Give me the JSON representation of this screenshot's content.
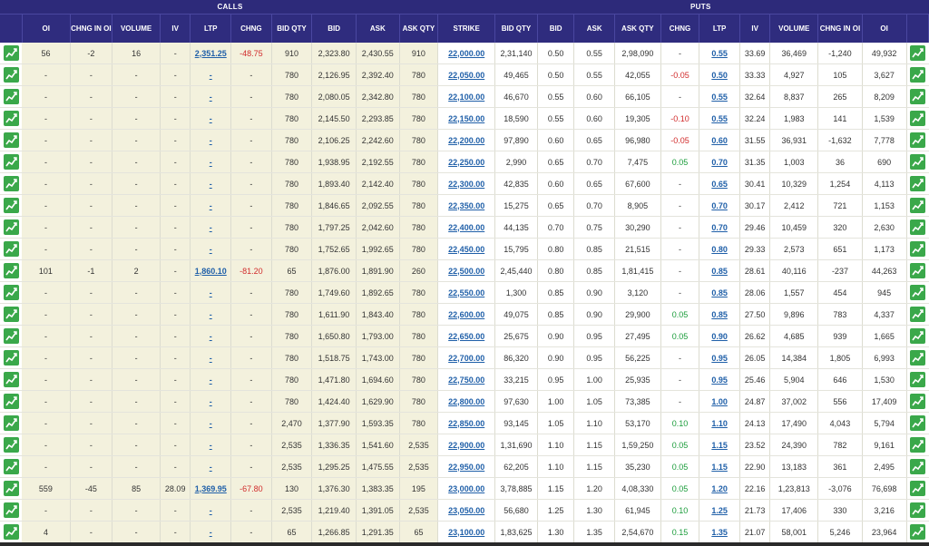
{
  "headers": {
    "calls": "CALLS",
    "puts": "PUTS",
    "columns_calls": [
      "OI",
      "CHNG IN OI",
      "VOLUME",
      "IV",
      "LTP",
      "CHNG",
      "BID QTY",
      "BID",
      "ASK",
      "ASK QTY"
    ],
    "strike": "STRIKE",
    "columns_puts": [
      "BID QTY",
      "BID",
      "ASK",
      "ASK QTY",
      "CHNG",
      "LTP",
      "IV",
      "VOLUME",
      "CHNG IN OI",
      "OI"
    ]
  },
  "rows": [
    {
      "c": [
        "56",
        "-2",
        "16",
        "-",
        "2,351.25",
        "-48.75",
        "910",
        "2,323.80",
        "2,430.55",
        "910"
      ],
      "strike": "22,000.00",
      "p": [
        "2,31,140",
        "0.50",
        "0.55",
        "2,98,090",
        "-",
        "0.55",
        "33.69",
        "36,469",
        "-1,240",
        "49,932"
      ]
    },
    {
      "c": [
        "-",
        "-",
        "-",
        "-",
        "-",
        "-",
        "780",
        "2,126.95",
        "2,392.40",
        "780"
      ],
      "strike": "22,050.00",
      "p": [
        "49,465",
        "0.50",
        "0.55",
        "42,055",
        "-0.05",
        "0.50",
        "33.33",
        "4,927",
        "105",
        "3,627"
      ]
    },
    {
      "c": [
        "-",
        "-",
        "-",
        "-",
        "-",
        "-",
        "780",
        "2,080.05",
        "2,342.80",
        "780"
      ],
      "strike": "22,100.00",
      "p": [
        "46,670",
        "0.55",
        "0.60",
        "66,105",
        "-",
        "0.55",
        "32.64",
        "8,837",
        "265",
        "8,209"
      ]
    },
    {
      "c": [
        "-",
        "-",
        "-",
        "-",
        "-",
        "-",
        "780",
        "2,145.50",
        "2,293.85",
        "780"
      ],
      "strike": "22,150.00",
      "p": [
        "18,590",
        "0.55",
        "0.60",
        "19,305",
        "-0.10",
        "0.55",
        "32.24",
        "1,983",
        "141",
        "1,539"
      ]
    },
    {
      "c": [
        "-",
        "-",
        "-",
        "-",
        "-",
        "-",
        "780",
        "2,106.25",
        "2,242.60",
        "780"
      ],
      "strike": "22,200.00",
      "p": [
        "97,890",
        "0.60",
        "0.65",
        "96,980",
        "-0.05",
        "0.60",
        "31.55",
        "36,931",
        "-1,632",
        "7,778"
      ]
    },
    {
      "c": [
        "-",
        "-",
        "-",
        "-",
        "-",
        "-",
        "780",
        "1,938.95",
        "2,192.55",
        "780"
      ],
      "strike": "22,250.00",
      "p": [
        "2,990",
        "0.65",
        "0.70",
        "7,475",
        "0.05",
        "0.70",
        "31.35",
        "1,003",
        "36",
        "690"
      ]
    },
    {
      "c": [
        "-",
        "-",
        "-",
        "-",
        "-",
        "-",
        "780",
        "1,893.40",
        "2,142.40",
        "780"
      ],
      "strike": "22,300.00",
      "p": [
        "42,835",
        "0.60",
        "0.65",
        "67,600",
        "-",
        "0.65",
        "30.41",
        "10,329",
        "1,254",
        "4,113"
      ]
    },
    {
      "c": [
        "-",
        "-",
        "-",
        "-",
        "-",
        "-",
        "780",
        "1,846.65",
        "2,092.55",
        "780"
      ],
      "strike": "22,350.00",
      "p": [
        "15,275",
        "0.65",
        "0.70",
        "8,905",
        "-",
        "0.70",
        "30.17",
        "2,412",
        "721",
        "1,153"
      ]
    },
    {
      "c": [
        "-",
        "-",
        "-",
        "-",
        "-",
        "-",
        "780",
        "1,797.25",
        "2,042.60",
        "780"
      ],
      "strike": "22,400.00",
      "p": [
        "44,135",
        "0.70",
        "0.75",
        "30,290",
        "-",
        "0.70",
        "29.46",
        "10,459",
        "320",
        "2,630"
      ]
    },
    {
      "c": [
        "-",
        "-",
        "-",
        "-",
        "-",
        "-",
        "780",
        "1,752.65",
        "1,992.65",
        "780"
      ],
      "strike": "22,450.00",
      "p": [
        "15,795",
        "0.80",
        "0.85",
        "21,515",
        "-",
        "0.80",
        "29.33",
        "2,573",
        "651",
        "1,173"
      ]
    },
    {
      "c": [
        "101",
        "-1",
        "2",
        "-",
        "1,860.10",
        "-81.20",
        "65",
        "1,876.00",
        "1,891.90",
        "260"
      ],
      "strike": "22,500.00",
      "p": [
        "2,45,440",
        "0.80",
        "0.85",
        "1,81,415",
        "-",
        "0.85",
        "28.61",
        "40,116",
        "-237",
        "44,263"
      ]
    },
    {
      "c": [
        "-",
        "-",
        "-",
        "-",
        "-",
        "-",
        "780",
        "1,749.60",
        "1,892.65",
        "780"
      ],
      "strike": "22,550.00",
      "p": [
        "1,300",
        "0.85",
        "0.90",
        "3,120",
        "-",
        "0.85",
        "28.06",
        "1,557",
        "454",
        "945"
      ]
    },
    {
      "c": [
        "-",
        "-",
        "-",
        "-",
        "-",
        "-",
        "780",
        "1,611.90",
        "1,843.40",
        "780"
      ],
      "strike": "22,600.00",
      "p": [
        "49,075",
        "0.85",
        "0.90",
        "29,900",
        "0.05",
        "0.85",
        "27.50",
        "9,896",
        "783",
        "4,337"
      ]
    },
    {
      "c": [
        "-",
        "-",
        "-",
        "-",
        "-",
        "-",
        "780",
        "1,650.80",
        "1,793.00",
        "780"
      ],
      "strike": "22,650.00",
      "p": [
        "25,675",
        "0.90",
        "0.95",
        "27,495",
        "0.05",
        "0.90",
        "26.62",
        "4,685",
        "939",
        "1,665"
      ]
    },
    {
      "c": [
        "-",
        "-",
        "-",
        "-",
        "-",
        "-",
        "780",
        "1,518.75",
        "1,743.00",
        "780"
      ],
      "strike": "22,700.00",
      "p": [
        "86,320",
        "0.90",
        "0.95",
        "56,225",
        "-",
        "0.95",
        "26.05",
        "14,384",
        "1,805",
        "6,993"
      ]
    },
    {
      "c": [
        "-",
        "-",
        "-",
        "-",
        "-",
        "-",
        "780",
        "1,471.80",
        "1,694.60",
        "780"
      ],
      "strike": "22,750.00",
      "p": [
        "33,215",
        "0.95",
        "1.00",
        "25,935",
        "-",
        "0.95",
        "25.46",
        "5,904",
        "646",
        "1,530"
      ]
    },
    {
      "c": [
        "-",
        "-",
        "-",
        "-",
        "-",
        "-",
        "780",
        "1,424.40",
        "1,629.90",
        "780"
      ],
      "strike": "22,800.00",
      "p": [
        "97,630",
        "1.00",
        "1.05",
        "73,385",
        "-",
        "1.00",
        "24.87",
        "37,002",
        "556",
        "17,409"
      ]
    },
    {
      "c": [
        "-",
        "-",
        "-",
        "-",
        "-",
        "-",
        "2,470",
        "1,377.90",
        "1,593.35",
        "780"
      ],
      "strike": "22,850.00",
      "p": [
        "93,145",
        "1.05",
        "1.10",
        "53,170",
        "0.10",
        "1.10",
        "24.13",
        "17,490",
        "4,043",
        "5,794"
      ]
    },
    {
      "c": [
        "-",
        "-",
        "-",
        "-",
        "-",
        "-",
        "2,535",
        "1,336.35",
        "1,541.60",
        "2,535"
      ],
      "strike": "22,900.00",
      "p": [
        "1,31,690",
        "1.10",
        "1.15",
        "1,59,250",
        "0.05",
        "1.15",
        "23.52",
        "24,390",
        "782",
        "9,161"
      ]
    },
    {
      "c": [
        "-",
        "-",
        "-",
        "-",
        "-",
        "-",
        "2,535",
        "1,295.25",
        "1,475.55",
        "2,535"
      ],
      "strike": "22,950.00",
      "p": [
        "62,205",
        "1.10",
        "1.15",
        "35,230",
        "0.05",
        "1.15",
        "22.90",
        "13,183",
        "361",
        "2,495"
      ]
    },
    {
      "c": [
        "559",
        "-45",
        "85",
        "28.09",
        "1,369.95",
        "-67.80",
        "130",
        "1,376.30",
        "1,383.35",
        "195"
      ],
      "strike": "23,000.00",
      "p": [
        "3,78,885",
        "1.15",
        "1.20",
        "4,08,330",
        "0.05",
        "1.20",
        "22.16",
        "1,23,813",
        "-3,076",
        "76,698"
      ]
    },
    {
      "c": [
        "-",
        "-",
        "-",
        "-",
        "-",
        "-",
        "2,535",
        "1,219.40",
        "1,391.05",
        "2,535"
      ],
      "strike": "23,050.00",
      "p": [
        "56,680",
        "1.25",
        "1.30",
        "61,945",
        "0.10",
        "1.25",
        "21.73",
        "17,406",
        "330",
        "3,216"
      ]
    },
    {
      "c": [
        "4",
        "-",
        "-",
        "-",
        "-",
        "-",
        "65",
        "1,266.85",
        "1,291.35",
        "65"
      ],
      "strike": "23,100.00",
      "p": [
        "1,83,625",
        "1.30",
        "1.35",
        "2,54,670",
        "0.15",
        "1.35",
        "21.07",
        "58,001",
        "5,246",
        "23,964"
      ]
    }
  ],
  "colors": {
    "header": "#2f2c7e",
    "calls_bg": "#f3f1dd",
    "link": "#1f5fa8",
    "negative": "#d12b2b",
    "positive": "#1a9c3a",
    "chart_button": "#3aa84a"
  },
  "icons": {
    "chart_button": "line-chart-icon"
  }
}
